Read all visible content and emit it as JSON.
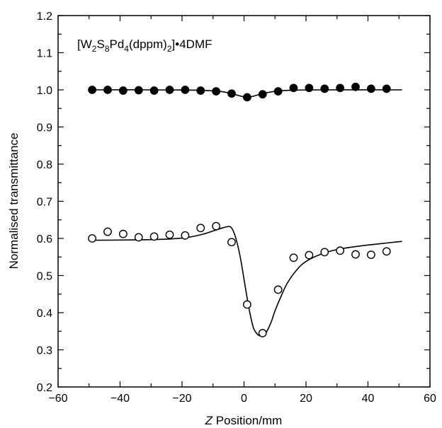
{
  "chart_data": {
    "type": "scatter",
    "title": "",
    "annotation": "[W2S8Pd4(dppm)2]•4DMF",
    "xlabel_italic": "Z",
    "xlabel_rest": " Position/mm",
    "ylabel": "Normalised transmittance",
    "xlim": [
      -60,
      60
    ],
    "ylim": [
      0.2,
      1.2
    ],
    "xticks": [
      -60,
      -40,
      -20,
      0,
      20,
      40,
      60
    ],
    "xtick_labels": [
      "−60",
      "−40",
      "−20",
      "0",
      "20",
      "40",
      "60"
    ],
    "yticks": [
      0.2,
      0.3,
      0.4,
      0.5,
      0.6,
      0.7,
      0.8,
      0.9,
      1.0,
      1.1,
      1.2
    ],
    "ytick_labels": [
      "0.2",
      "0.3",
      "0.4",
      "0.5",
      "0.6",
      "0.7",
      "0.8",
      "0.9",
      "1.0",
      "1.1",
      "1.2"
    ],
    "grid": false,
    "series": [
      {
        "marker": "filled-circle",
        "points": [
          [
            -49,
            1.0
          ],
          [
            -44,
            1.0
          ],
          [
            -39,
            0.998
          ],
          [
            -34,
            0.999
          ],
          [
            -29,
            0.998
          ],
          [
            -24,
            1.0
          ],
          [
            -19,
            1.0
          ],
          [
            -14,
            0.998
          ],
          [
            -9,
            0.996
          ],
          [
            -4,
            0.99
          ],
          [
            1,
            0.98
          ],
          [
            6,
            0.988
          ],
          [
            11,
            0.996
          ],
          [
            16,
            1.005
          ],
          [
            21,
            1.005
          ],
          [
            26,
            1.003
          ],
          [
            31,
            1.005
          ],
          [
            36,
            1.008
          ],
          [
            41,
            1.003
          ],
          [
            46,
            1.003
          ]
        ]
      },
      {
        "marker": "open-circle",
        "points": [
          [
            -49,
            0.6
          ],
          [
            -44,
            0.618
          ],
          [
            -39,
            0.612
          ],
          [
            -34,
            0.603
          ],
          [
            -29,
            0.605
          ],
          [
            -24,
            0.61
          ],
          [
            -19,
            0.608
          ],
          [
            -14,
            0.628
          ],
          [
            -9,
            0.633
          ],
          [
            -4,
            0.59
          ],
          [
            1,
            0.422
          ],
          [
            6,
            0.345
          ],
          [
            11,
            0.462
          ],
          [
            16,
            0.548
          ],
          [
            21,
            0.555
          ],
          [
            26,
            0.563
          ],
          [
            31,
            0.567
          ],
          [
            36,
            0.557
          ],
          [
            41,
            0.556
          ],
          [
            46,
            0.565
          ]
        ]
      }
    ],
    "fit_curves": [
      {
        "style": "solid",
        "points": [
          [
            -49,
            1.0
          ],
          [
            -30,
            1.0
          ],
          [
            -15,
            0.999
          ],
          [
            -8,
            0.996
          ],
          [
            -4,
            0.99
          ],
          [
            -1,
            0.983
          ],
          [
            1,
            0.98
          ],
          [
            3,
            0.983
          ],
          [
            6,
            0.99
          ],
          [
            10,
            0.996
          ],
          [
            15,
            0.999
          ],
          [
            25,
            1.0
          ],
          [
            51,
            1.0
          ]
        ]
      },
      {
        "style": "solid",
        "points": [
          [
            -49,
            0.595
          ],
          [
            -35,
            0.596
          ],
          [
            -25,
            0.598
          ],
          [
            -18,
            0.603
          ],
          [
            -13,
            0.612
          ],
          [
            -10,
            0.62
          ],
          [
            -7,
            0.628
          ],
          [
            -5,
            0.632
          ],
          [
            -4,
            0.628
          ],
          [
            -3,
            0.61
          ],
          [
            -2,
            0.58
          ],
          [
            -1,
            0.54
          ],
          [
            0,
            0.49
          ],
          [
            1,
            0.44
          ],
          [
            2,
            0.395
          ],
          [
            3,
            0.36
          ],
          [
            4,
            0.345
          ],
          [
            5,
            0.338
          ],
          [
            6,
            0.338
          ],
          [
            7,
            0.345
          ],
          [
            8,
            0.36
          ],
          [
            9,
            0.38
          ],
          [
            10,
            0.405
          ],
          [
            12,
            0.445
          ],
          [
            14,
            0.48
          ],
          [
            17,
            0.515
          ],
          [
            20,
            0.538
          ],
          [
            25,
            0.558
          ],
          [
            30,
            0.57
          ],
          [
            36,
            0.578
          ],
          [
            42,
            0.584
          ],
          [
            51,
            0.592
          ]
        ]
      }
    ]
  }
}
